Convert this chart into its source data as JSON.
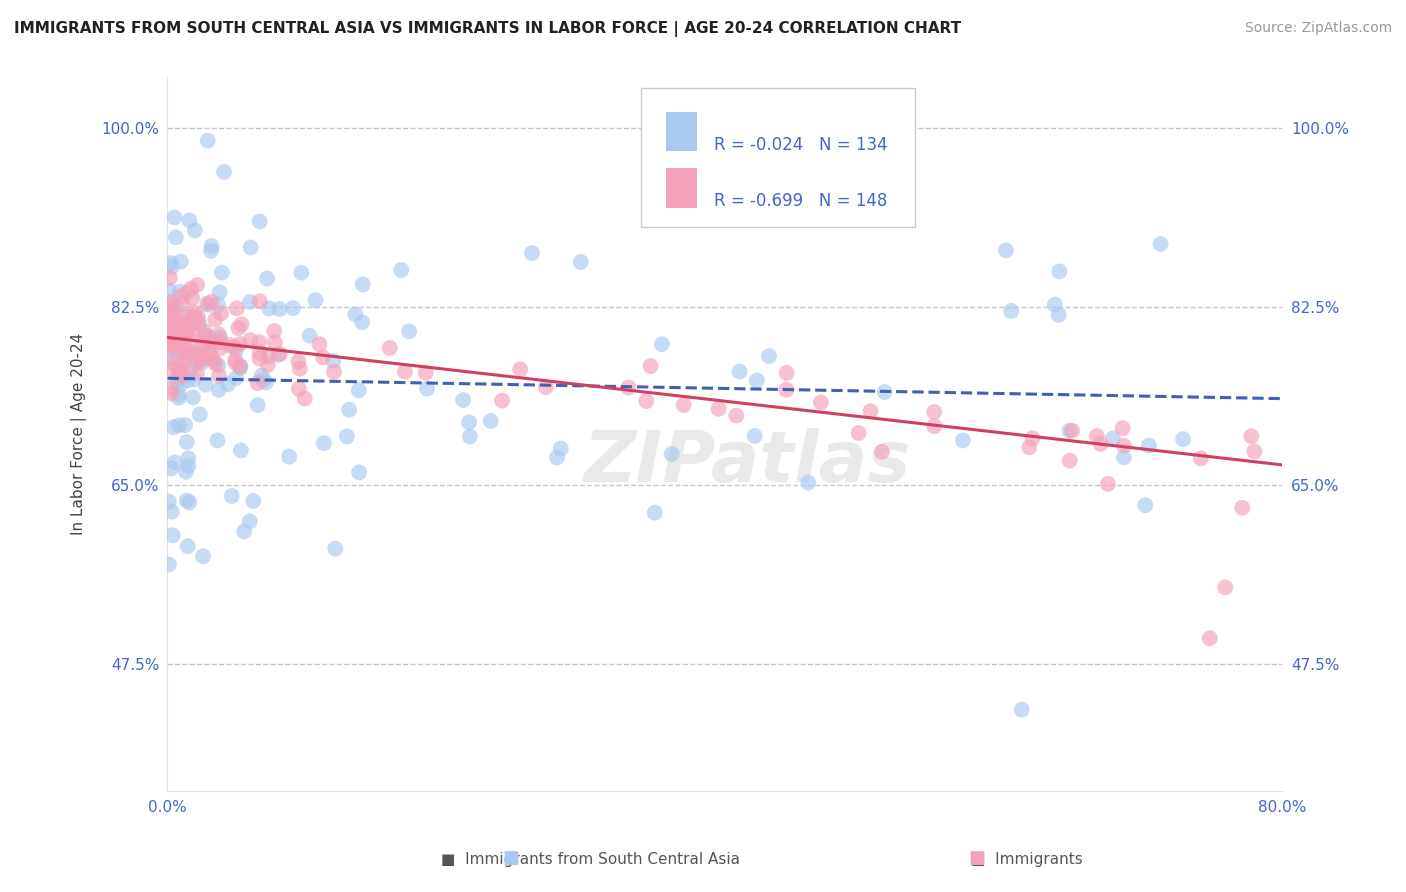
{
  "title": "IMMIGRANTS FROM SOUTH CENTRAL ASIA VS IMMIGRANTS IN LABOR FORCE | AGE 20-24 CORRELATION CHART",
  "source": "Source: ZipAtlas.com",
  "ylabel": "In Labor Force | Age 20-24",
  "ytick_vals": [
    1.0,
    0.825,
    0.65,
    0.475
  ],
  "ytick_labels": [
    "100.0%",
    "82.5%",
    "65.0%",
    "47.5%"
  ],
  "xtick_vals": [
    0.0,
    0.8
  ],
  "xtick_labels": [
    "0.0%",
    "80.0%"
  ],
  "xlim": [
    0.0,
    0.8
  ],
  "ylim": [
    0.35,
    1.05
  ],
  "legend_blue_R": -0.024,
  "legend_blue_N": 134,
  "legend_pink_R": -0.699,
  "legend_pink_N": 148,
  "label_blue": "Immigrants from South Central Asia",
  "label_pink": "Immigrants",
  "blue_scatter_color": "#aac8f0",
  "pink_scatter_color": "#f4a0b8",
  "blue_line_color": "#4060b0",
  "pink_line_color": "#d04060",
  "watermark": "ZIPatlas",
  "background_color": "#ffffff",
  "grid_color": "#c8c8c8",
  "text_color": "#4466cc",
  "title_color": "#222222",
  "source_color": "#999999",
  "blue_line_start_y": 0.755,
  "blue_line_end_y": 0.735,
  "pink_line_start_y": 0.795,
  "pink_line_end_y": 0.67
}
